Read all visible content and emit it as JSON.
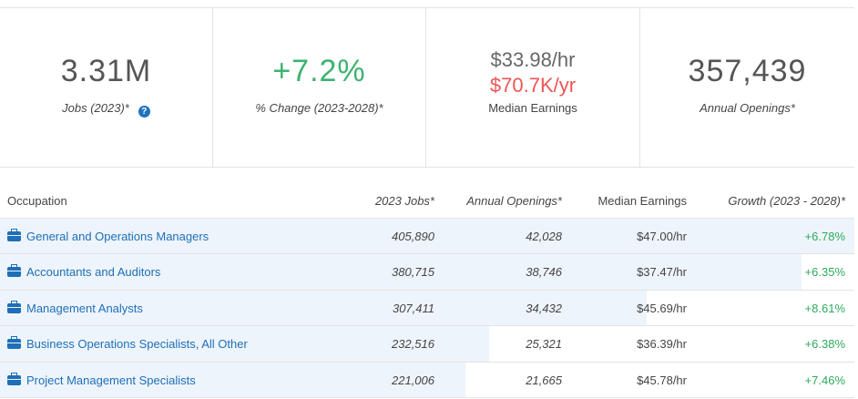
{
  "summary": {
    "jobs_value": "3.31M",
    "jobs_caption": "Jobs (2023)*",
    "help_icon": "?",
    "change_value": "+7.2%",
    "change_caption": "% Change (2023-2028)*",
    "earnings_hourly": "$33.98/hr",
    "earnings_yearly": "$70.7K/yr",
    "earnings_caption": "Median Earnings",
    "openings_value": "357,439",
    "openings_caption": "Annual Openings*"
  },
  "table": {
    "headers": {
      "occupation": "Occupation",
      "jobs": "2023 Jobs*",
      "openings": "Annual Openings*",
      "earnings": "Median Earnings",
      "growth": "Growth (2023 - 2028)*"
    },
    "rows": [
      {
        "occupation": "General and Operations Managers",
        "jobs": "405,890",
        "openings": "42,028",
        "earnings": "$47.00/hr",
        "growth": "+6.78%",
        "share": 1.0
      },
      {
        "occupation": "Accountants and Auditors",
        "jobs": "380,715",
        "openings": "38,746",
        "earnings": "$37.47/hr",
        "growth": "+6.35%",
        "share": 0.938
      },
      {
        "occupation": "Management Analysts",
        "jobs": "307,411",
        "openings": "34,432",
        "earnings": "$45.69/hr",
        "growth": "+8.61%",
        "share": 0.757
      },
      {
        "occupation": "Business Operations Specialists, All Other",
        "jobs": "232,516",
        "openings": "25,321",
        "earnings": "$36.39/hr",
        "growth": "+6.38%",
        "share": 0.573
      },
      {
        "occupation": "Project Management Specialists",
        "jobs": "221,006",
        "openings": "21,665",
        "earnings": "$45.78/hr",
        "growth": "+7.46%",
        "share": 0.545
      }
    ]
  },
  "colors": {
    "link": "#1e6fb8",
    "growth": "#2eaa5c",
    "change": "#3cb371",
    "yearly": "#ee5555",
    "bar": "#eef4fb"
  }
}
